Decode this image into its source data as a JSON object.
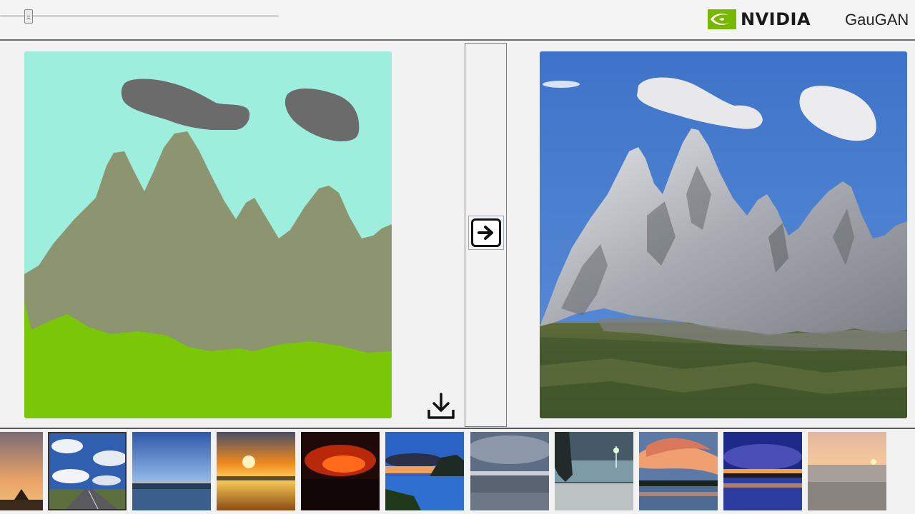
{
  "header": {
    "brush_size_slider": {
      "value_fraction": 0.1
    },
    "brand_name": "NVIDIA",
    "app_title": "GauGAN"
  },
  "icons": {
    "generate": "arrow-right-icon",
    "download": "download-icon",
    "brand": "nvidia-eye-logo"
  },
  "colors": {
    "sky_label": "#9deedc",
    "cloud_label": "#6b6b6b",
    "mountain_label": "#8c9470",
    "grass_label": "#79c707",
    "nvidia_green": "#76b900"
  },
  "thumbnails": [
    "sunset-partial",
    "road-clouds",
    "sea-dusk",
    "sunset-sea",
    "red-sunset",
    "cliff-sunset",
    "grey-sea",
    "beach-lighthouse",
    "fiery-clouds",
    "purple-city-dusk",
    "pastel-sea"
  ]
}
